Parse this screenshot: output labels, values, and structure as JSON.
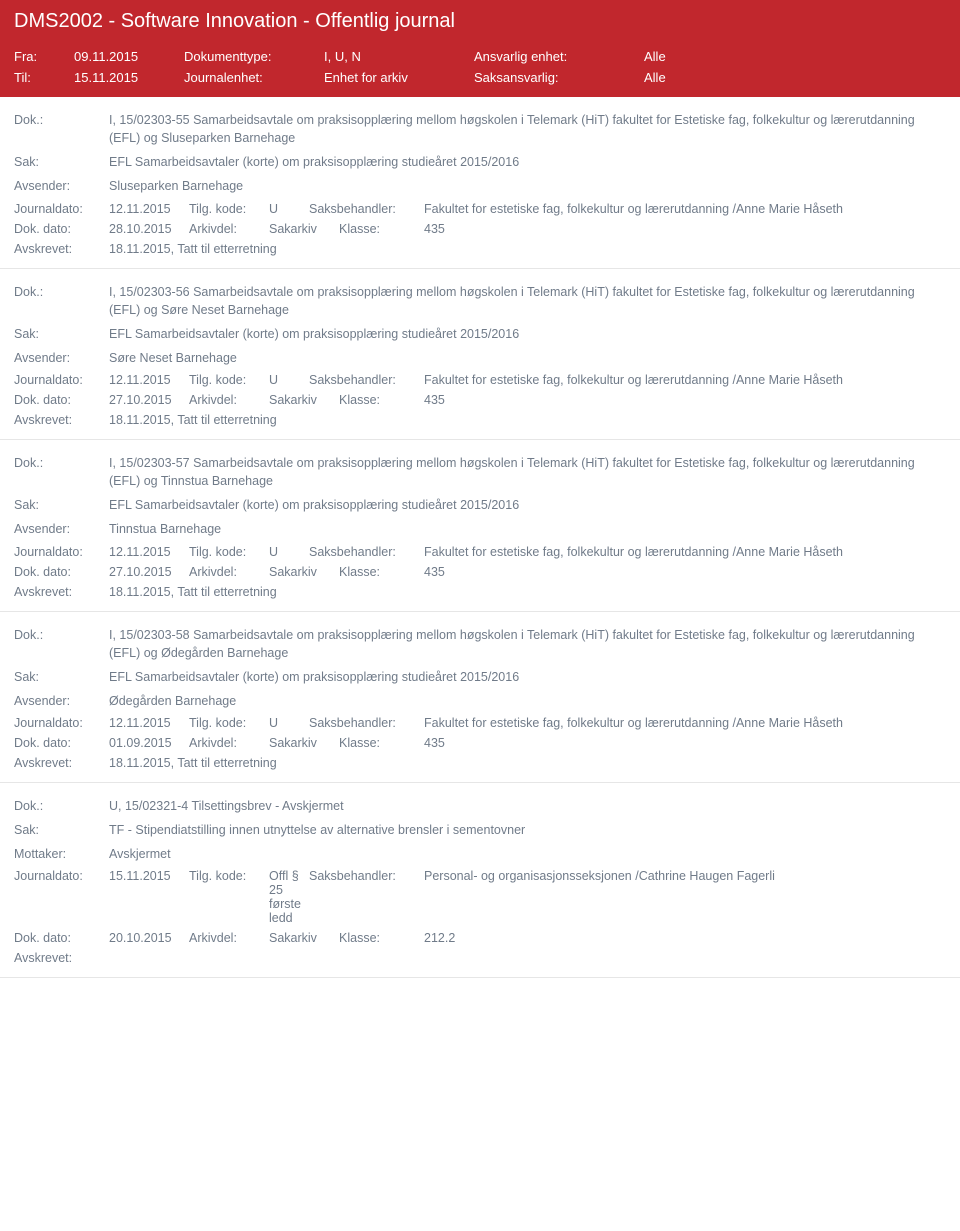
{
  "header": {
    "title": "DMS2002 - Software Innovation - Offentlig journal"
  },
  "meta": {
    "fra_label": "Fra:",
    "fra_value": "09.11.2015",
    "til_label": "Til:",
    "til_value": "15.11.2015",
    "doktype_label": "Dokumenttype:",
    "doktype_value": "I, U, N",
    "journal_label": "Journalenhet:",
    "journal_value": "Enhet for arkiv",
    "ansvarlig_label": "Ansvarlig enhet:",
    "ansvarlig_value": "Alle",
    "saksansvarlig_label": "Saksansvarlig:",
    "saksansvarlig_value": "Alle"
  },
  "labels": {
    "dok": "Dok.:",
    "sak": "Sak:",
    "avsender": "Avsender:",
    "mottaker": "Mottaker:",
    "journaldato": "Journaldato:",
    "tilgkode": "Tilg. kode:",
    "saksbehandler": "Saksbehandler:",
    "dokdato": "Dok. dato:",
    "arkivdel": "Arkivdel:",
    "klasse": "Klasse:",
    "avskrevet": "Avskrevet:"
  },
  "records": [
    {
      "dok": "I, 15/02303-55 Samarbeidsavtale om praksisopplæring mellom høgskolen i Telemark (HiT) fakultet for Estetiske fag, folkekultur og lærerutdanning (EFL) og Sluseparken Barnehage",
      "sak": "EFL Samarbeidsavtaler (korte) om praksisopplæring studieåret 2015/2016",
      "party_label": "Avsender:",
      "party": "Sluseparken Barnehage",
      "journaldato": "12.11.2015",
      "tilg": "U",
      "saksbehandler": "Fakultet for estetiske fag, folkekultur og lærerutdanning /Anne Marie Håseth",
      "dokdato": "28.10.2015",
      "arkivdel": "Sakarkiv",
      "klasse": "435",
      "avskrevet": "18.11.2015, Tatt til etterretning"
    },
    {
      "dok": "I, 15/02303-56 Samarbeidsavtale om praksisopplæring mellom høgskolen i Telemark (HiT) fakultet for Estetiske fag, folkekultur og lærerutdanning (EFL) og Søre Neset Barnehage",
      "sak": "EFL Samarbeidsavtaler (korte) om praksisopplæring studieåret 2015/2016",
      "party_label": "Avsender:",
      "party": "Søre Neset Barnehage",
      "journaldato": "12.11.2015",
      "tilg": "U",
      "saksbehandler": "Fakultet for estetiske fag, folkekultur og lærerutdanning /Anne Marie Håseth",
      "dokdato": "27.10.2015",
      "arkivdel": "Sakarkiv",
      "klasse": "435",
      "avskrevet": "18.11.2015, Tatt til etterretning"
    },
    {
      "dok": "I, 15/02303-57 Samarbeidsavtale om praksisopplæring mellom høgskolen i Telemark (HiT) fakultet for Estetiske fag, folkekultur og lærerutdanning (EFL) og Tinnstua Barnehage",
      "sak": "EFL Samarbeidsavtaler (korte) om praksisopplæring studieåret 2015/2016",
      "party_label": "Avsender:",
      "party": "Tinnstua Barnehage",
      "journaldato": "12.11.2015",
      "tilg": "U",
      "saksbehandler": "Fakultet for estetiske fag, folkekultur og lærerutdanning /Anne Marie Håseth",
      "dokdato": "27.10.2015",
      "arkivdel": "Sakarkiv",
      "klasse": "435",
      "avskrevet": "18.11.2015, Tatt til etterretning"
    },
    {
      "dok": "I, 15/02303-58 Samarbeidsavtale om praksisopplæring mellom høgskolen i Telemark (HiT) fakultet for Estetiske fag, folkekultur og lærerutdanning (EFL) og Ødegården Barnehage",
      "sak": "EFL Samarbeidsavtaler (korte) om praksisopplæring studieåret 2015/2016",
      "party_label": "Avsender:",
      "party": "Ødegården Barnehage",
      "journaldato": "12.11.2015",
      "tilg": "U",
      "saksbehandler": "Fakultet for estetiske fag, folkekultur og lærerutdanning /Anne Marie Håseth",
      "dokdato": "01.09.2015",
      "arkivdel": "Sakarkiv",
      "klasse": "435",
      "avskrevet": "18.11.2015, Tatt til etterretning"
    },
    {
      "dok": "U, 15/02321-4 Tilsettingsbrev - Avskjermet",
      "sak": "TF - Stipendiatstilling innen  utnyttelse av alternative brensler i sementovner",
      "party_label": "Mottaker:",
      "party": "Avskjermet",
      "journaldato": "15.11.2015",
      "tilg": "Offl § 25 første ledd",
      "saksbehandler": "Personal- og organisasjonsseksjonen /Cathrine Haugen Fagerli",
      "dokdato": "20.10.2015",
      "arkivdel": "Sakarkiv",
      "klasse": "212.2",
      "avskrevet": ""
    }
  ],
  "style": {
    "header_bg": "#c1272d",
    "header_fg": "#ffffff",
    "body_fg": "#707b89",
    "border": "#e6e6e6"
  }
}
